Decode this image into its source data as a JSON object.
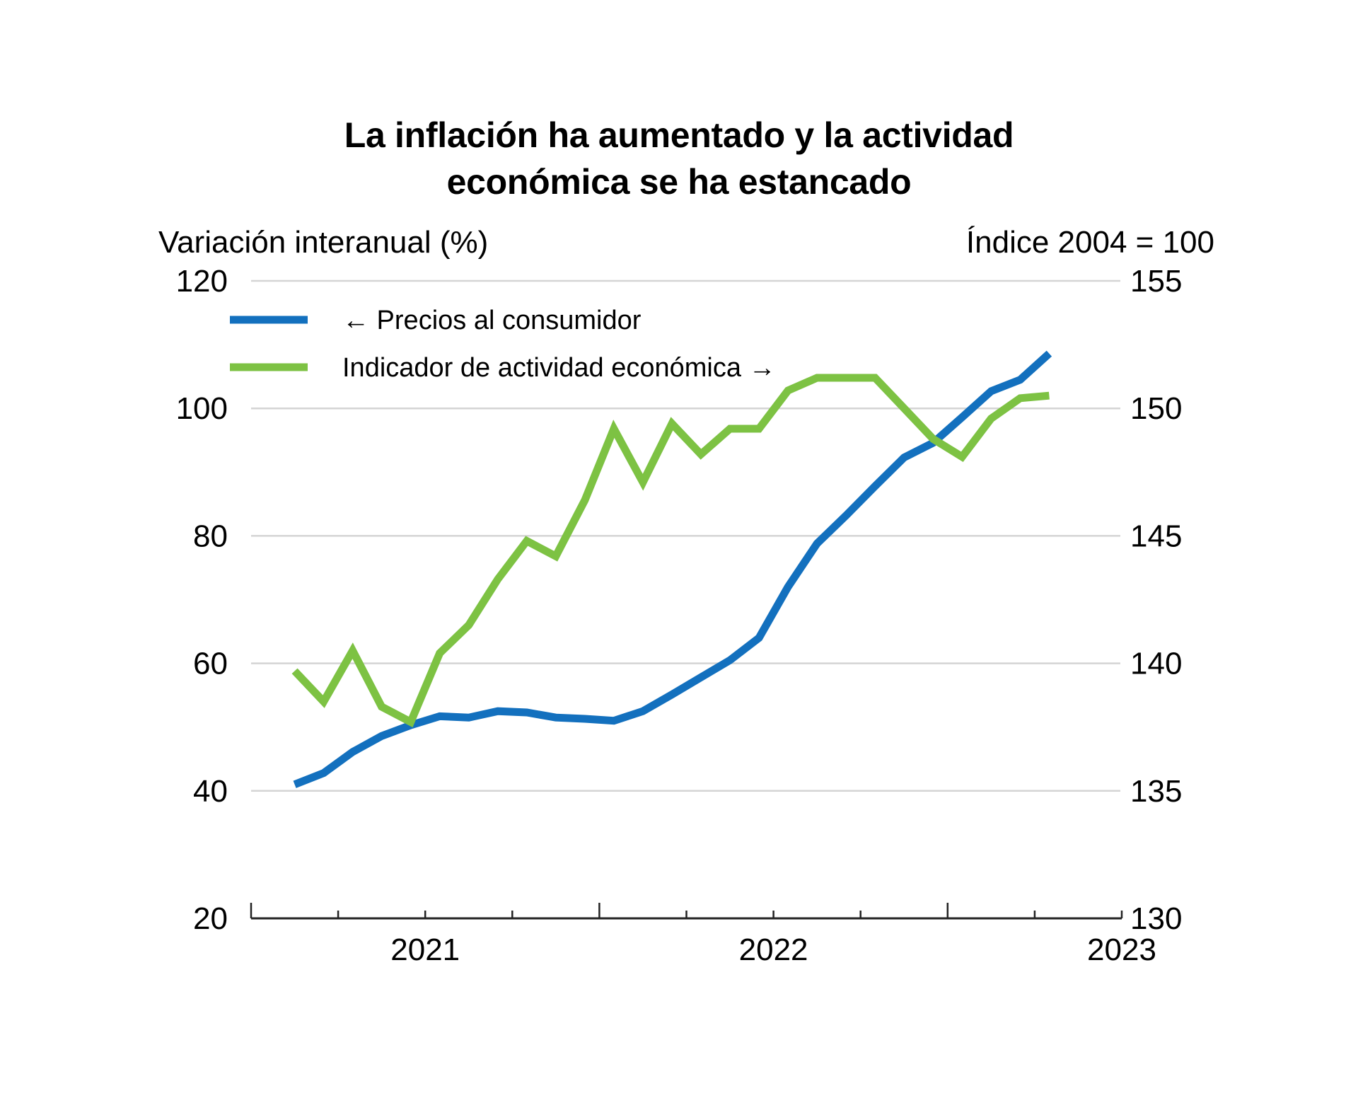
{
  "chart_data": {
    "type": "line",
    "title_lines": [
      "La inflación ha aumentado y la actividad",
      "económica se ha estancado"
    ],
    "title": "La inflación ha aumentado y la actividad económica se ha estancado",
    "ylabel_left": "Variación interanual (%)",
    "ylabel_right": "Índice 2004 = 100",
    "ylim_left": [
      20,
      120
    ],
    "ylim_right": [
      130,
      155
    ],
    "yticks_left": [
      20,
      40,
      60,
      80,
      100,
      120
    ],
    "yticks_right": [
      130,
      135,
      140,
      145,
      150,
      155
    ],
    "xaxis": {
      "start": "2020-07",
      "end": "2023-01",
      "tick_labels": [
        "2021",
        "2022",
        "2023"
      ],
      "tick_label_months": [
        6,
        18,
        30
      ],
      "minor_tick_interval_months": 3,
      "major_tick_months": [
        12,
        24
      ]
    },
    "grid": true,
    "legend_position": "top-left",
    "x": [
      "2020-08",
      "2020-09",
      "2020-10",
      "2020-11",
      "2020-12",
      "2021-01",
      "2021-02",
      "2021-03",
      "2021-04",
      "2021-05",
      "2021-06",
      "2021-07",
      "2021-08",
      "2021-09",
      "2021-10",
      "2021-11",
      "2021-12",
      "2022-01",
      "2022-02",
      "2022-03",
      "2022-04",
      "2022-05",
      "2022-06",
      "2022-07",
      "2022-08",
      "2022-09",
      "2022-10"
    ],
    "series": [
      {
        "name": "← Precios al consumidor",
        "axis": "left",
        "color": "#1370BE",
        "values": [
          41.0,
          42.8,
          46.1,
          48.6,
          50.3,
          51.7,
          51.5,
          52.5,
          52.3,
          51.5,
          51.3,
          51.0,
          52.5,
          55.1,
          57.8,
          60.5,
          64.0,
          72.0,
          78.8,
          83.2,
          87.8,
          92.3,
          94.6,
          98.6,
          102.7,
          104.5,
          108.6
        ]
      },
      {
        "name": "Indicador de actividad económica →",
        "axis": "right",
        "color": "#7DC243",
        "values": [
          139.7,
          138.5,
          140.5,
          138.3,
          137.7,
          140.4,
          141.5,
          143.3,
          144.8,
          144.2,
          146.4,
          149.2,
          147.1,
          149.4,
          148.2,
          149.2,
          149.2,
          150.7,
          151.2,
          151.2,
          151.2,
          150.0,
          148.8,
          148.1,
          149.6,
          150.4,
          150.5
        ]
      }
    ]
  }
}
